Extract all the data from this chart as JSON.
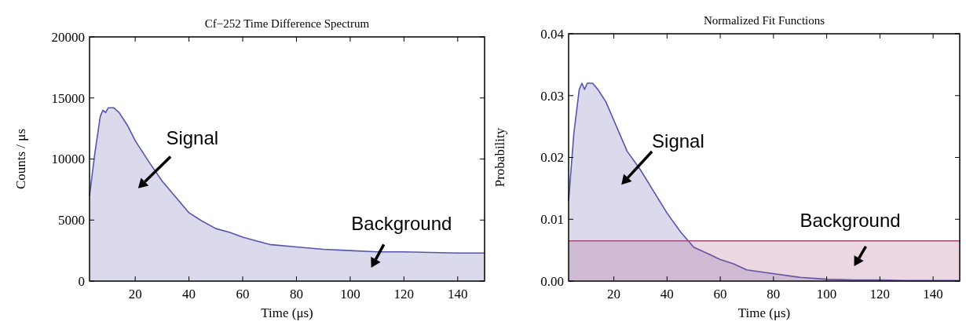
{
  "chart_data": [
    {
      "type": "area",
      "title": "Cf−252 Time Difference Spectrum",
      "xlabel": "Time (μs)",
      "ylabel": "Counts / μs",
      "xlim": [
        3,
        150
      ],
      "ylim": [
        0,
        20000
      ],
      "xticks": [
        20,
        40,
        60,
        80,
        100,
        120,
        140
      ],
      "yticks": [
        0,
        5000,
        10000,
        15000,
        20000
      ],
      "x": [
        3,
        5,
        7,
        8,
        9,
        10,
        12,
        14,
        17,
        20,
        25,
        30,
        35,
        40,
        45,
        50,
        55,
        60,
        65,
        70,
        80,
        90,
        100,
        110,
        120,
        130,
        140,
        150
      ],
      "series": [
        {
          "color": "#5555aa",
          "values": [
            7000,
            10500,
            13500,
            14000,
            13800,
            14200,
            14200,
            13800,
            12800,
            11500,
            9800,
            8200,
            6900,
            5600,
            4900,
            4300,
            4000,
            3600,
            3300,
            3000,
            2800,
            2600,
            2500,
            2400,
            2400,
            2350,
            2300,
            2300
          ]
        }
      ],
      "annotations": [
        "Signal",
        "Background"
      ]
    },
    {
      "type": "area",
      "title": "Normalized Fit Functions",
      "xlabel": "Time (μs)",
      "ylabel": "Probability",
      "xlim": [
        3,
        150
      ],
      "ylim": [
        0,
        0.04
      ],
      "xticks": [
        20,
        40,
        60,
        80,
        100,
        120,
        140
      ],
      "yticks": [
        {
          "value": 0,
          "label": "0.00"
        },
        {
          "value": 0.01,
          "label": "0.01"
        },
        {
          "value": 0.02,
          "label": "0.02"
        },
        {
          "value": 0.03,
          "label": "0.03"
        },
        {
          "value": 0.04,
          "label": "0.04"
        }
      ],
      "x": [
        3,
        5,
        7,
        8,
        9,
        10,
        12,
        14,
        17,
        20,
        25,
        30,
        35,
        40,
        45,
        50,
        55,
        60,
        65,
        70,
        80,
        90,
        100,
        110,
        120,
        130,
        140,
        150
      ],
      "series": [
        {
          "color": "#5555aa",
          "values": [
            0.013,
            0.024,
            0.031,
            0.032,
            0.031,
            0.032,
            0.032,
            0.031,
            0.029,
            0.026,
            0.021,
            0.018,
            0.0145,
            0.011,
            0.008,
            0.0055,
            0.0045,
            0.0035,
            0.0028,
            0.0018,
            0.0012,
            0.0006,
            0.0003,
            0.0002,
            0.0002,
            0.0001,
            0.0001,
            0.0001
          ]
        },
        {
          "color": "#a34a7a",
          "x": [
            3,
            150
          ],
          "values": [
            0.0065,
            0.0065
          ]
        }
      ],
      "annotations": [
        "Signal",
        "Background"
      ]
    }
  ]
}
